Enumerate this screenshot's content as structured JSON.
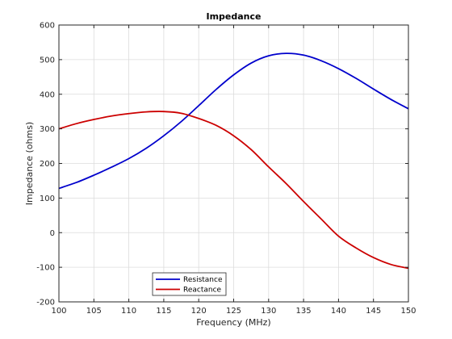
{
  "chart_data": {
    "type": "line",
    "title": "Impedance",
    "xlabel": "Frequency (MHz)",
    "ylabel": "Impedance (ohms)",
    "xlim": [
      100,
      150
    ],
    "ylim": [
      -200,
      600
    ],
    "xticks": [
      100,
      105,
      110,
      115,
      120,
      125,
      130,
      135,
      140,
      145,
      150
    ],
    "yticks": [
      -200,
      -100,
      0,
      100,
      200,
      300,
      400,
      500,
      600
    ],
    "grid": true,
    "legend_position": "bottom-left",
    "x": [
      100,
      102.5,
      105,
      107.5,
      110,
      112.5,
      115,
      117.5,
      120,
      122.5,
      125,
      127.5,
      130,
      132.5,
      135,
      137.5,
      140,
      142.5,
      145,
      147.5,
      150
    ],
    "series": [
      {
        "name": "Resistance",
        "color": "#0000cc",
        "values": [
          128,
          145,
          166,
          189,
          214,
          244,
          280,
          321,
          367,
          414,
          456,
          490,
          511,
          518,
          513,
          497,
          474,
          446,
          415,
          385,
          358
        ]
      },
      {
        "name": "Reactance",
        "color": "#cc0000",
        "values": [
          300,
          315,
          327,
          337,
          344,
          349,
          350,
          345,
          330,
          310,
          280,
          240,
          190,
          142,
          90,
          40,
          -10,
          -44,
          -72,
          -92,
          -103
        ]
      }
    ]
  }
}
